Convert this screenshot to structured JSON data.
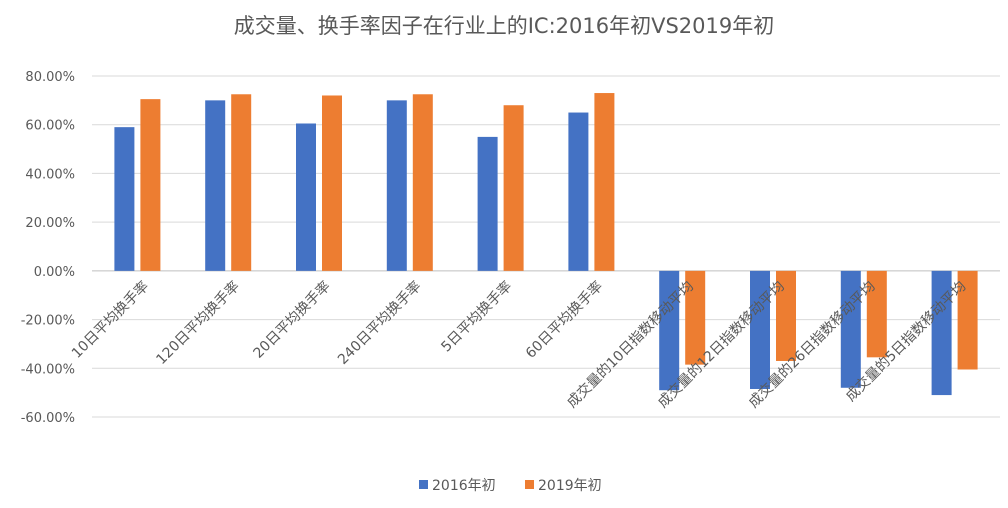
{
  "chart_data": {
    "type": "bar",
    "title": "成交量、换手率因子在行业上的IC:2016年初VS2019年初",
    "xlabel": "",
    "ylabel": "",
    "ylim": [
      -0.6,
      0.8
    ],
    "ytick_step": 0.2,
    "ytick_labels": [
      "80.00%",
      "60.00%",
      "40.00%",
      "20.00%",
      "0.00%",
      "-20.00%",
      "-40.00%",
      "-60.00%"
    ],
    "grid": true,
    "legend_position": "bottom",
    "categories": [
      "10日平均换手率",
      "120日平均换手率",
      "20日平均换手率",
      "240日平均换手率",
      "5日平均换手率",
      "60日平均换手率",
      "成交量的10日指数移动平均",
      "成交量的12日指数移动平均",
      "成交量的26日指数移动平均",
      "成交量的5日指数移动平均"
    ],
    "series": [
      {
        "name": "2016年初",
        "color": "#4472C4",
        "values": [
          0.59,
          0.7,
          0.605,
          0.7,
          0.55,
          0.65,
          -0.49,
          -0.485,
          -0.48,
          -0.51
        ]
      },
      {
        "name": "2019年初",
        "color": "#ED7D31",
        "values": [
          0.705,
          0.725,
          0.72,
          0.725,
          0.68,
          0.73,
          -0.385,
          -0.37,
          -0.355,
          -0.405
        ]
      }
    ]
  }
}
